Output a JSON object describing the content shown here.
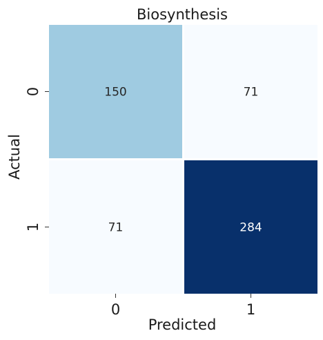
{
  "chart_data": {
    "type": "heatmap",
    "title": "Biosynthesis",
    "xlabel": "Predicted",
    "ylabel": "Actual",
    "x_categories": [
      "0",
      "1"
    ],
    "y_categories": [
      "0",
      "1"
    ],
    "values": [
      [
        150,
        71
      ],
      [
        71,
        284
      ]
    ],
    "colormap": "Blues",
    "color_range": [
      71,
      284
    ],
    "colors": {
      "low": "#f7fbff",
      "mid": "#a2cbe2",
      "high": "#08306b",
      "cell_border": "#ffffff",
      "text_dark": "#262626",
      "text_light": "#ffffff"
    },
    "colorbar": false,
    "grid": false
  }
}
